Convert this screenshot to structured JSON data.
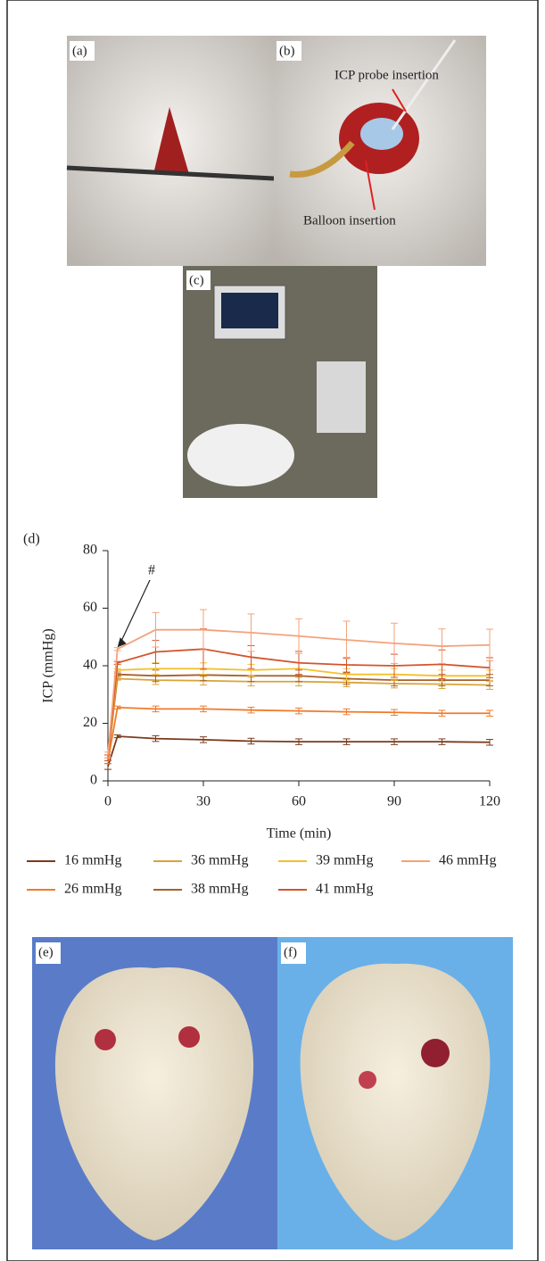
{
  "panels": {
    "a": "(a)",
    "b": "(b)",
    "c": "(c)",
    "d": "(d)",
    "e": "(e)",
    "f": "(f)"
  },
  "photo_labels": [
    "ICP probe insertion",
    "Balloon insertion"
  ],
  "chart_data": {
    "type": "line",
    "xlabel": "Time (min)",
    "ylabel": "ICP (mmHg)",
    "annotation": "#",
    "x": [
      0,
      3,
      15,
      30,
      45,
      60,
      75,
      90,
      105,
      120
    ],
    "xlim": [
      0,
      120
    ],
    "xticks": [
      0,
      30,
      60,
      90,
      120
    ],
    "ylim": [
      0,
      80
    ],
    "yticks": [
      0,
      20,
      40,
      60,
      80
    ],
    "series": [
      {
        "name": "16 mmHg",
        "color": "#7a3a1c",
        "values": [
          5,
          15.5,
          14.7,
          14.3,
          13.8,
          13.6,
          13.6,
          13.6,
          13.6,
          13.4
        ],
        "errors": [
          1,
          0.5,
          1,
          1,
          1,
          1,
          1,
          1,
          1,
          1
        ]
      },
      {
        "name": "26 mmHg",
        "color": "#f07a2a",
        "values": [
          7,
          25.5,
          25,
          25,
          24.6,
          24.3,
          24,
          23.8,
          23.5,
          23.5
        ],
        "errors": [
          1,
          0.5,
          1,
          1,
          1,
          1,
          1,
          1,
          1,
          1
        ]
      },
      {
        "name": "36 mmHg",
        "color": "#d8a43a",
        "values": [
          8,
          35.5,
          35,
          34.8,
          34.5,
          34.5,
          34.2,
          33.8,
          33.6,
          33.3
        ],
        "errors": [
          1,
          0.5,
          1.5,
          1.5,
          1.5,
          1.5,
          1.5,
          1.5,
          1.5,
          1.5
        ]
      },
      {
        "name": "38 mmHg",
        "color": "#a8602c",
        "values": [
          8,
          37,
          36.5,
          36.8,
          36.5,
          36.5,
          35.5,
          35,
          35,
          35
        ],
        "errors": [
          1,
          0.5,
          2,
          2,
          2,
          2,
          2,
          2,
          2,
          2
        ]
      },
      {
        "name": "39 mmHg",
        "color": "#f5c02a",
        "values": [
          8,
          38.5,
          39,
          39,
          38.5,
          39,
          37,
          37,
          36.5,
          36.5
        ],
        "errors": [
          1,
          0.5,
          2,
          2,
          2,
          2,
          2,
          2,
          2,
          2
        ]
      },
      {
        "name": "41 mmHg",
        "color": "#d4542a",
        "values": [
          8,
          41,
          44.8,
          45.8,
          43,
          41,
          40.3,
          40,
          40.5,
          39.3
        ],
        "errors": [
          1,
          0.5,
          4,
          7,
          4,
          4,
          2.5,
          4,
          5,
          3.5
        ]
      },
      {
        "name": "46 mmHg",
        "color": "#f4a27a",
        "values": [
          9,
          45.8,
          52.5,
          52.5,
          51.5,
          50.3,
          49,
          47.8,
          46.8,
          47.2
        ],
        "errors": [
          1,
          0.5,
          6,
          7,
          6.5,
          6,
          6.5,
          7,
          6,
          5.5
        ]
      }
    ]
  }
}
